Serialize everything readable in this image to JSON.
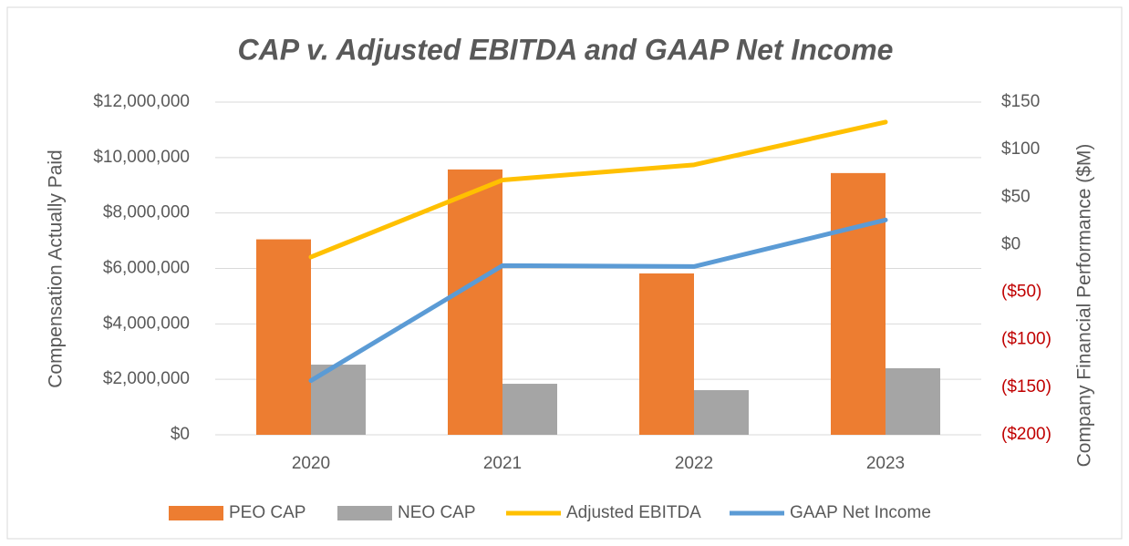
{
  "chart_data": {
    "type": "bar_line",
    "title": "CAP v. Adjusted EBITDA and GAAP Net Income",
    "y_label": "Compensation Actually Paid",
    "y2_label": "Company Financial Performance ($M)",
    "categories": [
      "2020",
      "2021",
      "2022",
      "2023"
    ],
    "series": [
      {
        "name": "PEO CAP",
        "type": "bar",
        "color": "#ed7d31",
        "values": [
          7050000,
          9570000,
          5820000,
          9440000
        ]
      },
      {
        "name": "NEO CAP",
        "type": "bar",
        "color": "#a5a5a5",
        "values": [
          2530000,
          1840000,
          1610000,
          2400000
        ]
      },
      {
        "name": "Adjusted EBITDA",
        "type": "line",
        "axis": "y2",
        "color": "#ffc000",
        "values": [
          -13,
          68,
          84,
          129
        ]
      },
      {
        "name": "GAAP Net Income",
        "type": "line",
        "axis": "y2",
        "color": "#5b9bd5",
        "values": [
          -143,
          -22,
          -23,
          26
        ]
      }
    ],
    "ylim": [
      0,
      12000000
    ],
    "yticks": [
      {
        "value": 0,
        "label": "$0"
      },
      {
        "value": 2000000,
        "label": "$2,000,000"
      },
      {
        "value": 4000000,
        "label": "$4,000,000"
      },
      {
        "value": 6000000,
        "label": "$6,000,000"
      },
      {
        "value": 8000000,
        "label": "$8,000,000"
      },
      {
        "value": 10000000,
        "label": "$10,000,000"
      },
      {
        "value": 12000000,
        "label": "$12,000,000"
      }
    ],
    "y2lim": [
      -200,
      150
    ],
    "y2ticks": [
      {
        "value": -200,
        "label": "($200)"
      },
      {
        "value": -150,
        "label": "($150)"
      },
      {
        "value": -100,
        "label": "($100)"
      },
      {
        "value": -50,
        "label": "($50)"
      },
      {
        "value": 0,
        "label": "$0"
      },
      {
        "value": 50,
        "label": "$50"
      },
      {
        "value": 100,
        "label": "$100"
      },
      {
        "value": 150,
        "label": "$150"
      }
    ],
    "negative_tick_color": "#c00000",
    "grid": true,
    "legend": "bottom"
  }
}
